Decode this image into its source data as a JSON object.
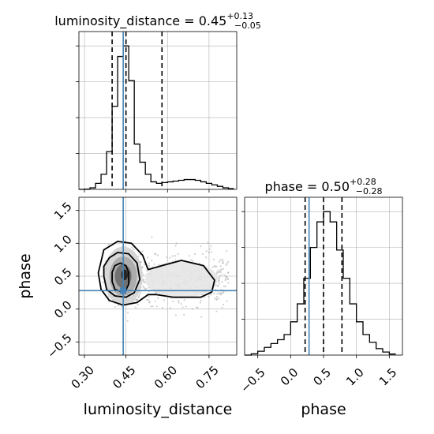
{
  "chart_data": [
    {
      "type": "histogram",
      "panel": "top-left",
      "title_param": "luminosity_distance",
      "title_value": "0.45",
      "title_plus": "+0.13",
      "title_minus": "−0.05",
      "xlim": [
        0.28,
        0.85
      ],
      "ticks": [
        0.3,
        0.45,
        0.6,
        0.75
      ],
      "bins": [
        0.28,
        0.3,
        0.32,
        0.34,
        0.36,
        0.38,
        0.4,
        0.42,
        0.44,
        0.46,
        0.48,
        0.5,
        0.52,
        0.54,
        0.56,
        0.58,
        0.6,
        0.62,
        0.64,
        0.66,
        0.68,
        0.7,
        0.72,
        0.74,
        0.76,
        0.78,
        0.8,
        0.82,
        0.84
      ],
      "counts": [
        0,
        0.2,
        1,
        4,
        10,
        25,
        55,
        88,
        95,
        72,
        30,
        18,
        10,
        5,
        4,
        4.5,
        5,
        5.5,
        6,
        6.5,
        6.5,
        6,
        5,
        4,
        3,
        2,
        1,
        0.5
      ],
      "quantiles": [
        0.4,
        0.45,
        0.58
      ],
      "truth": 0.44
    },
    {
      "type": "histogram",
      "panel": "bottom-right",
      "title_param": "phase",
      "title_value": "0.50",
      "title_plus": "+0.28",
      "title_minus": "−0.28",
      "xlim": [
        -0.7,
        1.7
      ],
      "ticks": [
        "−0.5",
        "0.0",
        "0.5",
        "1.0",
        "1.5"
      ],
      "tick_values": [
        -0.5,
        0.0,
        0.5,
        1.0,
        1.5
      ],
      "bins": [
        -0.7,
        -0.6,
        -0.5,
        -0.4,
        -0.3,
        -0.2,
        -0.1,
        0.0,
        0.1,
        0.2,
        0.3,
        0.4,
        0.5,
        0.6,
        0.7,
        0.8,
        0.9,
        1.0,
        1.1,
        1.2,
        1.3,
        1.4,
        1.5,
        1.6
      ],
      "counts": [
        0,
        0.5,
        1.5,
        3,
        4.5,
        6,
        8,
        13,
        20,
        30,
        42,
        52,
        56,
        52,
        41,
        30,
        20,
        13,
        8,
        5,
        2.5,
        1.2,
        0.4
      ],
      "quantiles": [
        0.22,
        0.5,
        0.78
      ],
      "truth": 0.28
    },
    {
      "type": "scatter",
      "panel": "bottom-left",
      "x_label": "luminosity_distance",
      "y_label": "phase",
      "xlim": [
        0.28,
        0.85
      ],
      "ylim": [
        -0.7,
        1.7
      ],
      "x_ticks": [
        0.3,
        0.45,
        0.6,
        0.75
      ],
      "y_ticks": [
        "−0.5",
        "0.0",
        "0.5",
        "1.0",
        "1.5"
      ],
      "y_tick_values": [
        -0.5,
        0.0,
        0.5,
        1.0,
        1.5
      ],
      "truth": {
        "x": 0.44,
        "y": 0.28
      },
      "contours": [
        [
          [
            0.4,
            0.42
          ],
          [
            0.41,
            0.3
          ],
          [
            0.43,
            0.27
          ],
          [
            0.45,
            0.29
          ],
          [
            0.46,
            0.38
          ],
          [
            0.46,
            0.55
          ],
          [
            0.45,
            0.66
          ],
          [
            0.43,
            0.7
          ],
          [
            0.41,
            0.66
          ],
          [
            0.4,
            0.56
          ]
        ],
        [
          [
            0.37,
            0.5
          ],
          [
            0.38,
            0.3
          ],
          [
            0.41,
            0.2
          ],
          [
            0.45,
            0.18
          ],
          [
            0.48,
            0.25
          ],
          [
            0.5,
            0.45
          ],
          [
            0.49,
            0.7
          ],
          [
            0.46,
            0.84
          ],
          [
            0.42,
            0.86
          ],
          [
            0.39,
            0.78
          ],
          [
            0.37,
            0.65
          ]
        ],
        [
          [
            0.35,
            0.55
          ],
          [
            0.36,
            0.3
          ],
          [
            0.39,
            0.13
          ],
          [
            0.44,
            0.06
          ],
          [
            0.49,
            0.1
          ],
          [
            0.53,
            0.22
          ],
          [
            0.56,
            0.22
          ],
          [
            0.62,
            0.18
          ],
          [
            0.72,
            0.18
          ],
          [
            0.76,
            0.26
          ],
          [
            0.77,
            0.44
          ],
          [
            0.73,
            0.66
          ],
          [
            0.65,
            0.74
          ],
          [
            0.58,
            0.66
          ],
          [
            0.53,
            0.6
          ],
          [
            0.51,
            0.82
          ],
          [
            0.47,
            1.0
          ],
          [
            0.42,
            1.03
          ],
          [
            0.37,
            0.9
          ]
        ]
      ]
    }
  ]
}
